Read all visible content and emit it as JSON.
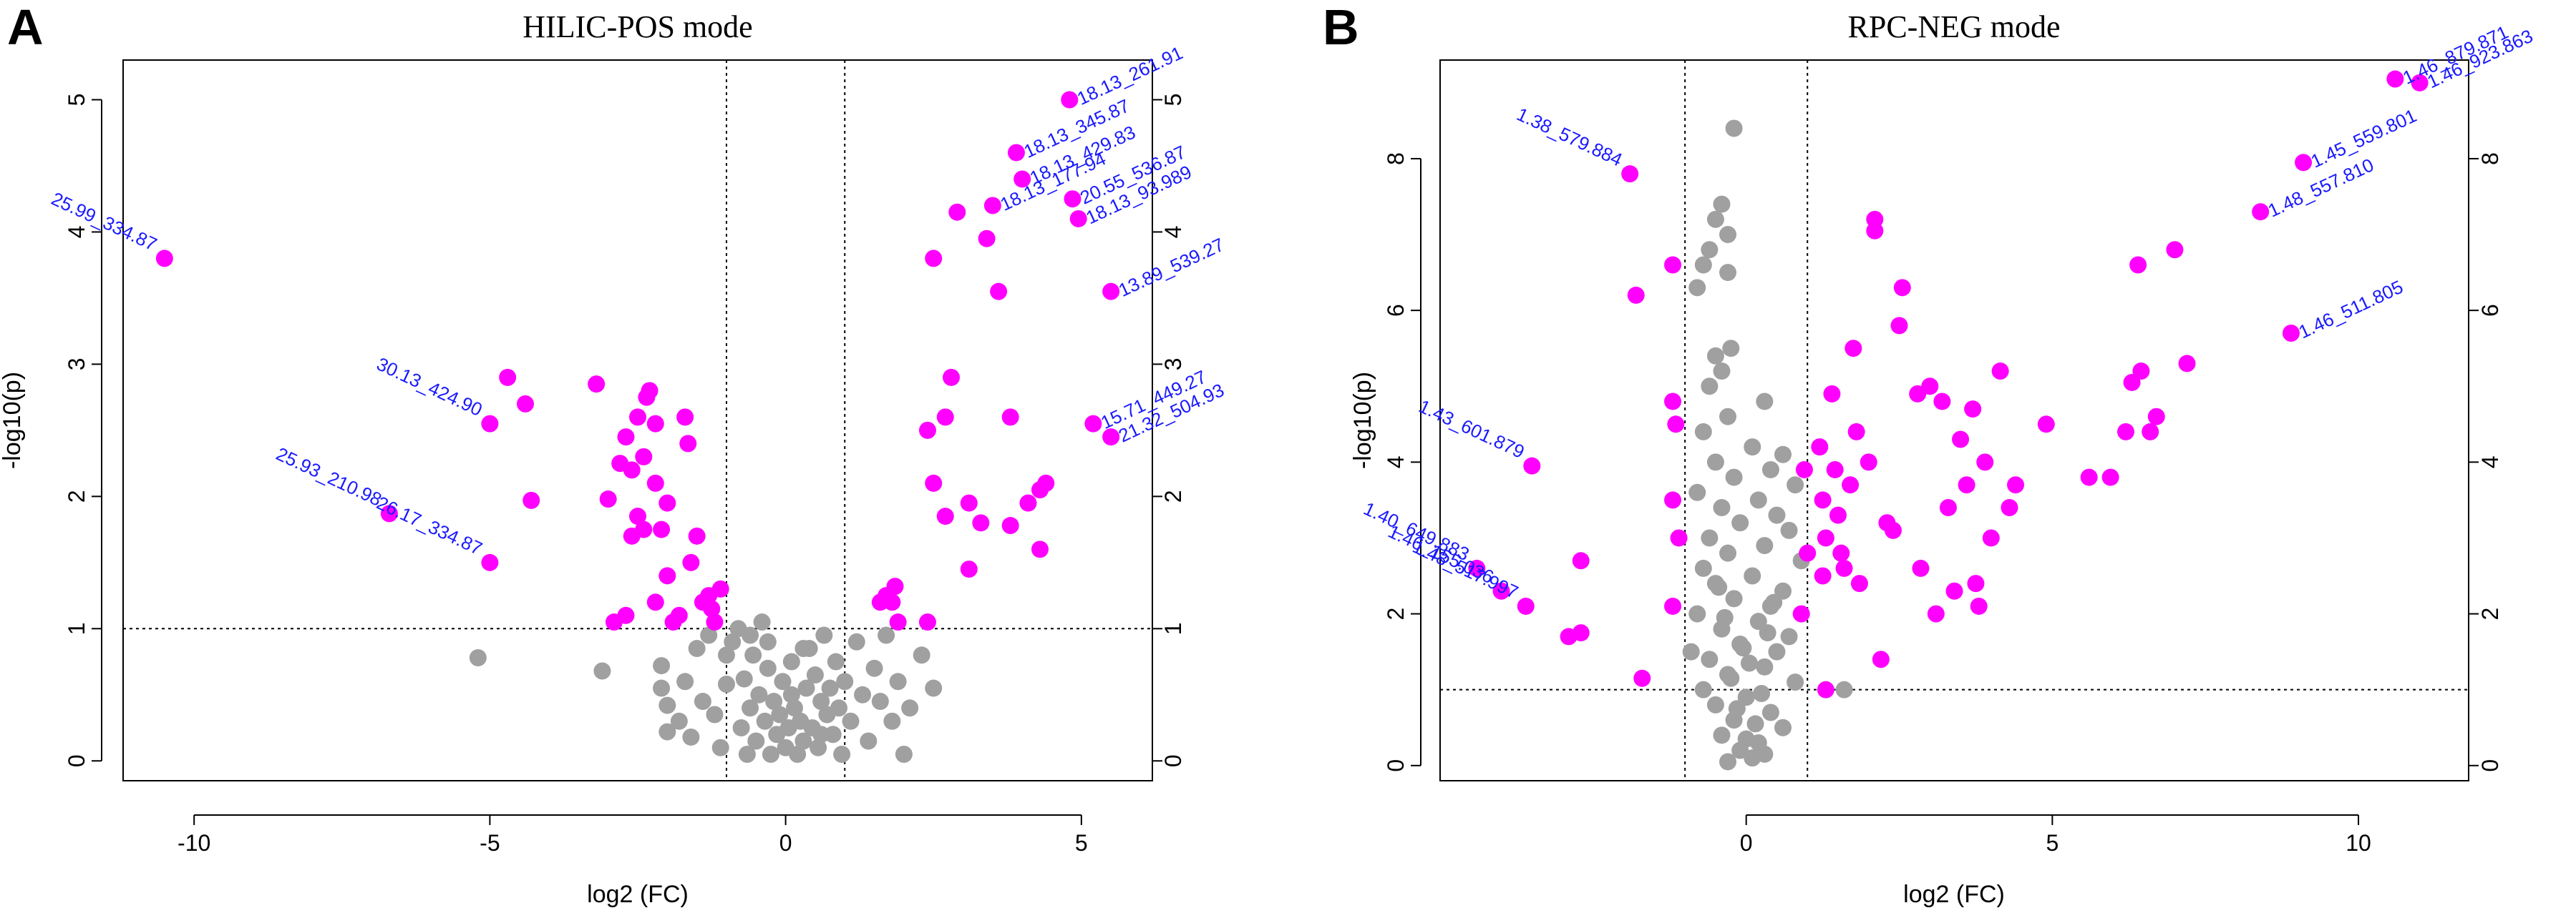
{
  "colors": {
    "significant": "#ff00ff",
    "nonsignificant": "#a0a0a0",
    "label": "#1a1aff",
    "axis": "#000000"
  },
  "chart_data": [
    {
      "type": "scatter",
      "panel": "A",
      "title": "HILIC-POS  mode",
      "xlabel": "log2 (FC)",
      "ylabel": "-log10(p)",
      "xlim": [
        -11.2,
        6.2
      ],
      "ylim": [
        -0.15,
        5.3
      ],
      "xticks": [
        -10,
        -5,
        0,
        5
      ],
      "yticks": [
        0,
        1,
        2,
        3,
        4,
        5
      ],
      "right_yticks": [
        0,
        1,
        2,
        3,
        4,
        5
      ],
      "fc_threshold": [
        -1,
        1
      ],
      "p_threshold": 1,
      "significant": [
        [
          -10.5,
          3.8
        ],
        [
          -4.7,
          2.9
        ],
        [
          -4.4,
          2.7
        ],
        [
          -4.3,
          1.97
        ],
        [
          -5.0,
          2.55
        ],
        [
          -5.0,
          1.5
        ],
        [
          -6.7,
          1.87
        ],
        [
          -3.2,
          2.85
        ],
        [
          -3.0,
          1.98
        ],
        [
          -2.9,
          1.05
        ],
        [
          -2.7,
          1.1
        ],
        [
          -2.6,
          2.2
        ],
        [
          -2.5,
          2.6
        ],
        [
          -2.4,
          2.3
        ],
        [
          -2.35,
          2.75
        ],
        [
          -2.3,
          2.8
        ],
        [
          -2.2,
          2.1
        ],
        [
          -2.2,
          2.55
        ],
        [
          -2.1,
          1.75
        ],
        [
          -2.0,
          1.95
        ],
        [
          -2.0,
          1.4
        ],
        [
          -1.9,
          1.05
        ],
        [
          -1.8,
          1.1
        ],
        [
          -1.7,
          2.6
        ],
        [
          -1.65,
          2.4
        ],
        [
          -1.5,
          1.7
        ],
        [
          -1.4,
          1.2
        ],
        [
          -1.3,
          1.25
        ],
        [
          -1.25,
          1.15
        ],
        [
          -1.2,
          1.05
        ],
        [
          -2.7,
          2.45
        ],
        [
          -2.8,
          2.25
        ],
        [
          -2.6,
          1.7
        ],
        [
          -2.5,
          1.85
        ],
        [
          -2.4,
          1.75
        ],
        [
          -1.6,
          1.5
        ],
        [
          -1.1,
          1.3
        ],
        [
          -2.2,
          1.2
        ],
        [
          1.6,
          1.2
        ],
        [
          1.7,
          1.25
        ],
        [
          1.8,
          1.2
        ],
        [
          1.85,
          1.32
        ],
        [
          1.9,
          1.05
        ],
        [
          2.4,
          1.05
        ],
        [
          2.4,
          2.5
        ],
        [
          2.5,
          2.1
        ],
        [
          2.5,
          3.8
        ],
        [
          2.7,
          2.6
        ],
        [
          2.7,
          1.85
        ],
        [
          2.8,
          2.9
        ],
        [
          2.9,
          4.15
        ],
        [
          3.1,
          1.45
        ],
        [
          3.3,
          1.8
        ],
        [
          3.5,
          4.2
        ],
        [
          3.4,
          3.95
        ],
        [
          3.6,
          3.55
        ],
        [
          3.8,
          1.78
        ],
        [
          3.9,
          4.6
        ],
        [
          4.0,
          4.4
        ],
        [
          4.1,
          1.95
        ],
        [
          4.3,
          2.05
        ],
        [
          4.3,
          1.6
        ],
        [
          4.4,
          2.1
        ],
        [
          4.85,
          4.25
        ],
        [
          4.95,
          4.1
        ],
        [
          4.8,
          5.0
        ],
        [
          3.8,
          2.6
        ],
        [
          3.1,
          1.95
        ],
        [
          5.5,
          3.55
        ],
        [
          5.2,
          2.55
        ],
        [
          5.5,
          2.45
        ]
      ],
      "nonsignificant": [
        [
          -5.2,
          0.78
        ],
        [
          -3.1,
          0.68
        ],
        [
          -2.1,
          0.55
        ],
        [
          -2.0,
          0.42
        ],
        [
          -2.0,
          0.22
        ],
        [
          -2.1,
          0.72
        ],
        [
          -1.8,
          0.3
        ],
        [
          -1.7,
          0.6
        ],
        [
          -1.6,
          0.18
        ],
        [
          -1.5,
          0.85
        ],
        [
          -1.4,
          0.45
        ],
        [
          -1.3,
          0.95
        ],
        [
          -1.2,
          0.35
        ],
        [
          -1.1,
          0.1
        ],
        [
          -1.0,
          0.58
        ],
        [
          -0.9,
          0.9
        ],
        [
          -0.8,
          1.0
        ],
        [
          -0.75,
          0.25
        ],
        [
          -0.7,
          0.62
        ],
        [
          -0.65,
          0.05
        ],
        [
          -0.6,
          0.4
        ],
        [
          -0.55,
          0.8
        ],
        [
          -0.5,
          0.15
        ],
        [
          -0.45,
          0.5
        ],
        [
          -0.4,
          1.05
        ],
        [
          -0.35,
          0.3
        ],
        [
          -0.3,
          0.7
        ],
        [
          -0.25,
          0.05
        ],
        [
          -0.2,
          0.45
        ],
        [
          -0.15,
          0.2
        ],
        [
          -0.1,
          0.35
        ],
        [
          -0.05,
          0.6
        ],
        [
          0.0,
          0.1
        ],
        [
          0.05,
          0.25
        ],
        [
          0.1,
          0.5
        ],
        [
          0.15,
          0.4
        ],
        [
          0.2,
          0.05
        ],
        [
          0.25,
          0.3
        ],
        [
          0.3,
          0.15
        ],
        [
          0.35,
          0.55
        ],
        [
          0.4,
          0.85
        ],
        [
          0.45,
          0.25
        ],
        [
          0.5,
          0.65
        ],
        [
          0.55,
          0.1
        ],
        [
          0.6,
          0.45
        ],
        [
          0.65,
          0.95
        ],
        [
          0.7,
          0.35
        ],
        [
          0.75,
          0.55
        ],
        [
          0.8,
          0.2
        ],
        [
          0.85,
          0.75
        ],
        [
          0.9,
          0.4
        ],
        [
          0.95,
          0.05
        ],
        [
          1.0,
          0.6
        ],
        [
          1.1,
          0.3
        ],
        [
          1.2,
          0.9
        ],
        [
          1.3,
          0.5
        ],
        [
          1.4,
          0.15
        ],
        [
          1.5,
          0.7
        ],
        [
          1.6,
          0.45
        ],
        [
          1.7,
          0.95
        ],
        [
          1.8,
          0.3
        ],
        [
          1.9,
          0.6
        ],
        [
          2.0,
          0.05
        ],
        [
          2.1,
          0.4
        ],
        [
          2.3,
          0.8
        ],
        [
          2.5,
          0.55
        ],
        [
          -0.3,
          0.9
        ],
        [
          -0.6,
          0.95
        ],
        [
          0.1,
          0.75
        ],
        [
          0.3,
          0.85
        ],
        [
          -1.0,
          0.8
        ],
        [
          0.6,
          0.2
        ]
      ],
      "annotations": [
        {
          "text": "25.99_334.87",
          "x": -10.5,
          "y": 3.8
        },
        {
          "text": "30.13_424.90",
          "x": -5.0,
          "y": 2.55
        },
        {
          "text": "25.93_210.98",
          "x": -6.7,
          "y": 1.87
        },
        {
          "text": "26.17_334.87",
          "x": -5.0,
          "y": 1.5
        },
        {
          "text": "18.13_261.91",
          "x": 4.8,
          "y": 5.0
        },
        {
          "text": "18.13_345.87",
          "x": 3.9,
          "y": 4.6
        },
        {
          "text": "18.13_429.83",
          "x": 4.0,
          "y": 4.4
        },
        {
          "text": "18.13_177.94",
          "x": 3.5,
          "y": 4.2
        },
        {
          "text": "20.55_536.87",
          "x": 4.85,
          "y": 4.25
        },
        {
          "text": "18.13_93.989",
          "x": 4.95,
          "y": 4.1
        },
        {
          "text": "13.89_539.27",
          "x": 5.5,
          "y": 3.55
        },
        {
          "text": "15.71_449.27",
          "x": 5.2,
          "y": 2.55
        },
        {
          "text": "21.32_504.93",
          "x": 5.5,
          "y": 2.45
        }
      ]
    },
    {
      "type": "scatter",
      "panel": "B",
      "title": "RPC-NEG  mode",
      "xlabel": "log2 (FC)",
      "ylabel": "-log10(p)",
      "xlim": [
        -5.0,
        11.8
      ],
      "ylim": [
        -0.2,
        9.3
      ],
      "xticks": [
        0,
        5,
        10
      ],
      "yticks": [
        0,
        2,
        4,
        6,
        8
      ],
      "right_yticks": [
        0,
        2,
        4,
        6,
        8
      ],
      "fc_threshold": [
        -1,
        1
      ],
      "p_threshold": 1,
      "significant": [
        [
          -1.9,
          7.8
        ],
        [
          -1.8,
          6.2
        ],
        [
          -1.2,
          6.6
        ],
        [
          -1.2,
          4.8
        ],
        [
          -1.15,
          4.5
        ],
        [
          -1.2,
          3.5
        ],
        [
          -1.1,
          3.0
        ],
        [
          -1.2,
          2.1
        ],
        [
          -1.7,
          1.15
        ],
        [
          -3.5,
          3.95
        ],
        [
          -2.7,
          2.7
        ],
        [
          -2.7,
          1.75
        ],
        [
          -2.9,
          1.7
        ],
        [
          -4.4,
          2.6
        ],
        [
          -4.0,
          2.3
        ],
        [
          -3.6,
          2.1
        ],
        [
          1.2,
          4.2
        ],
        [
          1.25,
          3.5
        ],
        [
          1.3,
          3.0
        ],
        [
          1.25,
          2.5
        ],
        [
          1.3,
          1.0
        ],
        [
          1.4,
          4.9
        ],
        [
          1.45,
          3.9
        ],
        [
          1.5,
          3.3
        ],
        [
          1.55,
          2.8
        ],
        [
          1.6,
          2.6
        ],
        [
          1.7,
          3.7
        ],
        [
          1.75,
          5.5
        ],
        [
          1.8,
          4.4
        ],
        [
          1.85,
          2.4
        ],
        [
          2.0,
          4.0
        ],
        [
          2.1,
          7.2
        ],
        [
          2.1,
          7.05
        ],
        [
          2.2,
          1.4
        ],
        [
          2.3,
          3.2
        ],
        [
          2.4,
          3.1
        ],
        [
          2.5,
          5.8
        ],
        [
          2.55,
          6.3
        ],
        [
          2.8,
          4.9
        ],
        [
          2.85,
          2.6
        ],
        [
          3.0,
          5.0
        ],
        [
          3.1,
          2.0
        ],
        [
          3.2,
          4.8
        ],
        [
          3.3,
          3.4
        ],
        [
          3.4,
          2.3
        ],
        [
          3.5,
          4.3
        ],
        [
          3.6,
          3.7
        ],
        [
          3.7,
          4.7
        ],
        [
          3.75,
          2.4
        ],
        [
          3.8,
          2.1
        ],
        [
          3.9,
          4.0
        ],
        [
          4.0,
          3.0
        ],
        [
          4.15,
          5.2
        ],
        [
          4.3,
          3.4
        ],
        [
          4.4,
          3.7
        ],
        [
          4.9,
          4.5
        ],
        [
          5.6,
          3.8
        ],
        [
          5.95,
          3.8
        ],
        [
          6.2,
          4.4
        ],
        [
          6.3,
          5.05
        ],
        [
          6.45,
          5.2
        ],
        [
          6.4,
          6.6
        ],
        [
          6.6,
          4.4
        ],
        [
          6.7,
          4.6
        ],
        [
          7.0,
          6.8
        ],
        [
          7.2,
          5.3
        ],
        [
          8.4,
          7.3
        ],
        [
          8.9,
          5.7
        ],
        [
          9.1,
          7.95
        ],
        [
          10.6,
          9.05
        ],
        [
          11.0,
          9.0
        ],
        [
          0.9,
          2.0
        ],
        [
          1.0,
          2.8
        ],
        [
          0.95,
          3.9
        ]
      ],
      "nonsignificant": [
        [
          -0.2,
          8.4
        ],
        [
          -0.4,
          7.4
        ],
        [
          -0.5,
          7.2
        ],
        [
          -0.3,
          7.0
        ],
        [
          -0.6,
          6.8
        ],
        [
          -0.7,
          6.6
        ],
        [
          -0.8,
          6.3
        ],
        [
          -0.3,
          6.5
        ],
        [
          -0.25,
          5.5
        ],
        [
          -0.5,
          5.4
        ],
        [
          -0.4,
          5.2
        ],
        [
          -0.6,
          5.0
        ],
        [
          0.3,
          4.8
        ],
        [
          -0.3,
          4.6
        ],
        [
          -0.7,
          4.4
        ],
        [
          0.1,
          4.2
        ],
        [
          0.6,
          4.1
        ],
        [
          -0.5,
          4.0
        ],
        [
          0.4,
          3.9
        ],
        [
          -0.2,
          3.8
        ],
        [
          0.8,
          3.7
        ],
        [
          -0.8,
          3.6
        ],
        [
          0.2,
          3.5
        ],
        [
          -0.4,
          3.4
        ],
        [
          0.5,
          3.3
        ],
        [
          -0.1,
          3.2
        ],
        [
          0.7,
          3.1
        ],
        [
          -0.6,
          3.0
        ],
        [
          0.3,
          2.9
        ],
        [
          -0.3,
          2.8
        ],
        [
          0.9,
          2.7
        ],
        [
          -0.7,
          2.6
        ],
        [
          0.1,
          2.5
        ],
        [
          -0.5,
          2.4
        ],
        [
          0.6,
          2.3
        ],
        [
          -0.2,
          2.2
        ],
        [
          0.4,
          2.1
        ],
        [
          -0.8,
          2.0
        ],
        [
          0.2,
          1.9
        ],
        [
          -0.4,
          1.8
        ],
        [
          0.7,
          1.7
        ],
        [
          -0.1,
          1.6
        ],
        [
          0.5,
          1.5
        ],
        [
          -0.6,
          1.4
        ],
        [
          0.3,
          1.3
        ],
        [
          -0.3,
          1.2
        ],
        [
          0.8,
          1.1
        ],
        [
          -0.7,
          1.0
        ],
        [
          0.0,
          0.9
        ],
        [
          -0.5,
          0.8
        ],
        [
          0.4,
          0.7
        ],
        [
          -0.2,
          0.6
        ],
        [
          0.6,
          0.5
        ],
        [
          -0.4,
          0.4
        ],
        [
          0.2,
          0.3
        ],
        [
          -0.1,
          0.2
        ],
        [
          0.1,
          0.1
        ],
        [
          -0.3,
          0.05
        ],
        [
          0.3,
          0.15
        ],
        [
          0.0,
          0.35
        ],
        [
          0.15,
          0.55
        ],
        [
          -0.15,
          0.75
        ],
        [
          0.25,
          0.95
        ],
        [
          -0.25,
          1.15
        ],
        [
          0.05,
          1.35
        ],
        [
          -0.05,
          1.55
        ],
        [
          0.35,
          1.75
        ],
        [
          -0.35,
          1.95
        ],
        [
          0.45,
          2.15
        ],
        [
          -0.45,
          2.35
        ],
        [
          1.6,
          1.0
        ],
        [
          -0.9,
          1.5
        ]
      ],
      "annotations": [
        {
          "text": "1.38_579.884",
          "x": -1.9,
          "y": 7.8
        },
        {
          "text": "1.43_601.879",
          "x": -3.5,
          "y": 3.95
        },
        {
          "text": "1.40_649.883",
          "x": -4.4,
          "y": 2.6
        },
        {
          "text": "1.46_155.036",
          "x": -4.0,
          "y": 2.3
        },
        {
          "text": "1.48_517.997",
          "x": -3.6,
          "y": 2.1
        },
        {
          "text": "1.46_879.871",
          "x": 10.6,
          "y": 9.05
        },
        {
          "text": "1.46_923.863",
          "x": 11.0,
          "y": 9.0
        },
        {
          "text": "1.45_559.801",
          "x": 9.1,
          "y": 7.95
        },
        {
          "text": "1.48_557.810",
          "x": 8.4,
          "y": 7.3
        },
        {
          "text": "1.46_511.805",
          "x": 8.9,
          "y": 5.7
        }
      ]
    }
  ]
}
